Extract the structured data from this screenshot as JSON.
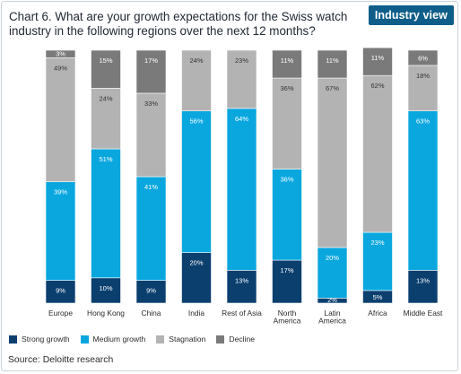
{
  "badge": "Industry view",
  "chart_data": {
    "type": "bar",
    "stacked": true,
    "title": "Chart 6. What are your growth expectations for the Swiss watch industry in the following regions over the next 12 months?",
    "categories": [
      "Europe",
      "Hong Kong",
      "China",
      "India",
      "Rest of Asia",
      "North America",
      "Latin America",
      "Africa",
      "Middle East"
    ],
    "category_lines": [
      [
        "Europe"
      ],
      [
        "Hong Kong"
      ],
      [
        "China"
      ],
      [
        "India"
      ],
      [
        "Rest of Asia"
      ],
      [
        "North",
        "America"
      ],
      [
        "Latin",
        "America"
      ],
      [
        "Africa"
      ],
      [
        "Middle East"
      ]
    ],
    "ylim": [
      0,
      100
    ],
    "grid": false,
    "legend_position": "bottom-left",
    "series": [
      {
        "name": "Strong growth",
        "color": "#0b3f6e",
        "values": [
          9,
          10,
          9,
          20,
          13,
          17,
          2,
          5,
          13
        ]
      },
      {
        "name": "Medium growth",
        "color": "#0aa7df",
        "values": [
          39,
          51,
          41,
          56,
          64,
          36,
          20,
          23,
          63
        ]
      },
      {
        "name": "Stagnation",
        "color": "#b3b3b3",
        "values": [
          49,
          24,
          33,
          24,
          23,
          36,
          67,
          62,
          18
        ]
      },
      {
        "name": "Decline",
        "color": "#7a7a7a",
        "values": [
          3,
          15,
          17,
          0,
          0,
          11,
          11,
          11,
          6
        ]
      }
    ],
    "label_format": "{v}%"
  },
  "source": "Source: Deloitte research"
}
